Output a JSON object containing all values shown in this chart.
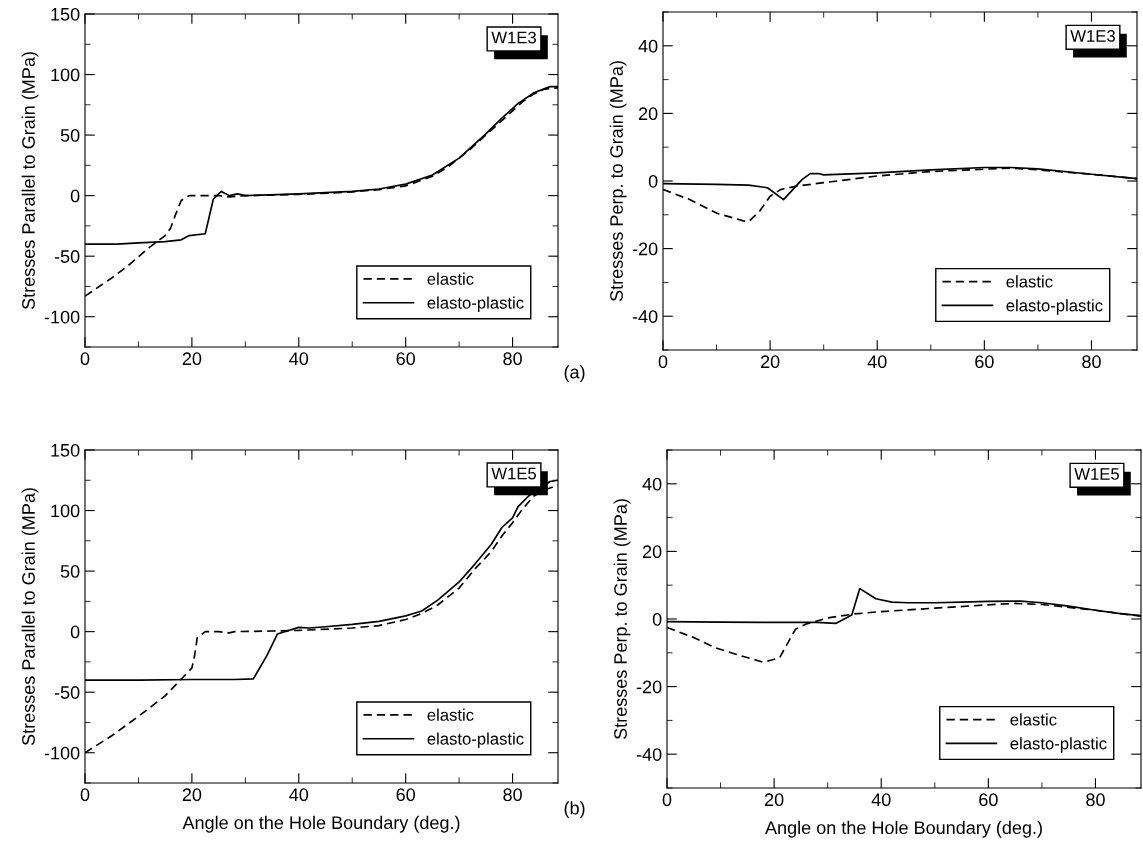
{
  "chart_data": [
    {
      "type": "line",
      "ylabel": "Stresses Parallel to Grain (MPa)",
      "xlim": [
        0,
        88.5
      ],
      "xticks": [
        0,
        20,
        40,
        60,
        80
      ],
      "ylim": [
        -125,
        150
      ],
      "yticks": [
        -100,
        -50,
        0,
        50,
        100,
        150
      ],
      "legend": "bottom right",
      "grid": false,
      "annotations": [
        "W1E3",
        "(a)"
      ],
      "series": [
        {
          "name": "elastic",
          "color": "#000000",
          "line_style": "dashed",
          "x": [
            0,
            5,
            8,
            12,
            15,
            16,
            17,
            18,
            19.5,
            22,
            25,
            27,
            30,
            40,
            50,
            55,
            60,
            65,
            68,
            70,
            72,
            75,
            78,
            80,
            82,
            84,
            86,
            88.5
          ],
          "values": [
            -83,
            -68,
            -58,
            -43,
            -33,
            -27,
            -15,
            -4,
            0,
            0,
            0,
            -1,
            0,
            1,
            3,
            5,
            8,
            16,
            24,
            31,
            38,
            50,
            62,
            70,
            78,
            84,
            88,
            89
          ]
        },
        {
          "name": "elasto-plastic",
          "color": "#000000",
          "line_style": "solid",
          "x": [
            0,
            6,
            10,
            15,
            18,
            19.5,
            22.5,
            24,
            25.5,
            27,
            28.5,
            30,
            40,
            50,
            55,
            60,
            65,
            70,
            75,
            78,
            81,
            84,
            87,
            88.5
          ],
          "values": [
            -40,
            -40,
            -39,
            -38,
            -36.5,
            -33,
            -31.5,
            -3,
            3.5,
            0,
            1.5,
            0,
            1.5,
            3.5,
            5.5,
            9.5,
            17,
            31,
            51,
            64,
            76,
            85,
            90,
            90
          ]
        }
      ]
    },
    {
      "type": "line",
      "ylabel": "Stresses Perp. to Grain (MPa)",
      "xlim": [
        0,
        88.5
      ],
      "xticks": [
        0,
        20,
        40,
        60,
        80
      ],
      "ylim": [
        -50,
        50
      ],
      "yticks": [
        -40,
        -20,
        0,
        20,
        40
      ],
      "legend": "bottom right",
      "grid": false,
      "annotations": [
        "W1E3"
      ],
      "series": [
        {
          "name": "elastic",
          "color": "#000000",
          "line_style": "dashed",
          "x": [
            0,
            5,
            10,
            15,
            16,
            18,
            20,
            22,
            25,
            30,
            40,
            50,
            60,
            65,
            70,
            80,
            88.5
          ],
          "values": [
            -2.5,
            -5.5,
            -9.5,
            -11.8,
            -12,
            -9,
            -4.5,
            -2.5,
            -1.5,
            -0.5,
            1.5,
            2.8,
            3.5,
            3.8,
            3.3,
            2,
            0.7
          ]
        },
        {
          "name": "elasto-plastic",
          "color": "#000000",
          "line_style": "solid",
          "x": [
            0,
            10,
            16,
            19.5,
            22.5,
            26,
            27.5,
            29,
            30,
            40,
            50,
            60,
            65,
            70,
            80,
            88.5
          ],
          "values": [
            -0.8,
            -1,
            -1.2,
            -2,
            -5.5,
            0.5,
            2.2,
            2.2,
            1.8,
            2.4,
            3.3,
            4,
            4,
            3.6,
            2,
            0.7
          ]
        }
      ]
    },
    {
      "type": "line",
      "xlabel": "Angle on the Hole Boundary (deg.)",
      "ylabel": "Stresses Parallel to Grain (MPa)",
      "xlim": [
        0,
        88.5
      ],
      "xticks": [
        0,
        20,
        40,
        60,
        80
      ],
      "ylim": [
        -125,
        150
      ],
      "yticks": [
        -100,
        -50,
        0,
        50,
        100,
        150
      ],
      "legend": "bottom right",
      "grid": false,
      "annotations": [
        "W1E5",
        "(b)"
      ],
      "series": [
        {
          "name": "elastic",
          "color": "#000000",
          "line_style": "dashed",
          "x": [
            0,
            5,
            10,
            15,
            20,
            20.5,
            21,
            22.5,
            25,
            27,
            28,
            35,
            40,
            50,
            55,
            60,
            63,
            66,
            70,
            73,
            76,
            78,
            80,
            82,
            84,
            86,
            88.5
          ],
          "values": [
            -100,
            -86,
            -70,
            -53,
            -30,
            -20,
            -5,
            0,
            0,
            -1,
            0,
            0.5,
            1,
            3,
            5,
            10,
            15,
            22,
            36,
            52,
            66,
            79,
            90,
            102,
            112,
            117,
            121
          ]
        },
        {
          "name": "elasto-plastic",
          "color": "#000000",
          "line_style": "solid",
          "x": [
            0,
            10,
            20,
            28,
            31.5,
            34,
            36,
            40,
            42,
            45,
            50,
            55,
            60,
            63,
            66,
            70,
            73,
            76,
            78,
            80,
            81,
            83,
            85,
            87,
            88.5
          ],
          "values": [
            -40,
            -40,
            -39.5,
            -39.5,
            -39,
            -20,
            -2,
            3.5,
            3,
            4,
            6,
            8.5,
            13,
            17,
            26,
            41,
            56,
            72,
            86,
            94,
            103,
            112,
            118,
            124,
            125
          ]
        }
      ]
    },
    {
      "type": "line",
      "xlabel": "Angle on the Hole Boundary (deg.)",
      "ylabel": "Stresses Perp. to Grain (MPa)",
      "xlim": [
        0,
        88.5
      ],
      "xticks": [
        0,
        20,
        40,
        60,
        80
      ],
      "ylim": [
        -50,
        50
      ],
      "yticks": [
        -40,
        -20,
        0,
        20,
        40
      ],
      "legend": "bottom right",
      "grid": false,
      "annotations": [
        "W1E5"
      ],
      "series": [
        {
          "name": "elastic",
          "color": "#000000",
          "line_style": "dashed",
          "x": [
            0,
            5,
            9,
            13,
            18,
            21,
            24,
            26,
            30,
            35,
            40,
            50,
            60,
            65,
            70,
            80,
            88.5
          ],
          "values": [
            -2.5,
            -5.5,
            -8.5,
            -10.5,
            -12.8,
            -11.5,
            -3,
            -1.5,
            0.3,
            1.5,
            2.2,
            3.2,
            4.2,
            4.6,
            4.3,
            2.6,
            0.8
          ]
        },
        {
          "name": "elasto-plastic",
          "color": "#000000",
          "line_style": "solid",
          "x": [
            0,
            10,
            20,
            28,
            31.5,
            34.5,
            36,
            39,
            42,
            45,
            50,
            55,
            60,
            66,
            70,
            75,
            80,
            85,
            88.5
          ],
          "values": [
            -0.8,
            -0.9,
            -1,
            -1,
            -1.3,
            1.2,
            9,
            6,
            5,
            4.8,
            4.8,
            5,
            5.2,
            5.3,
            4.8,
            3.8,
            2.6,
            1.5,
            1
          ]
        }
      ]
    }
  ]
}
